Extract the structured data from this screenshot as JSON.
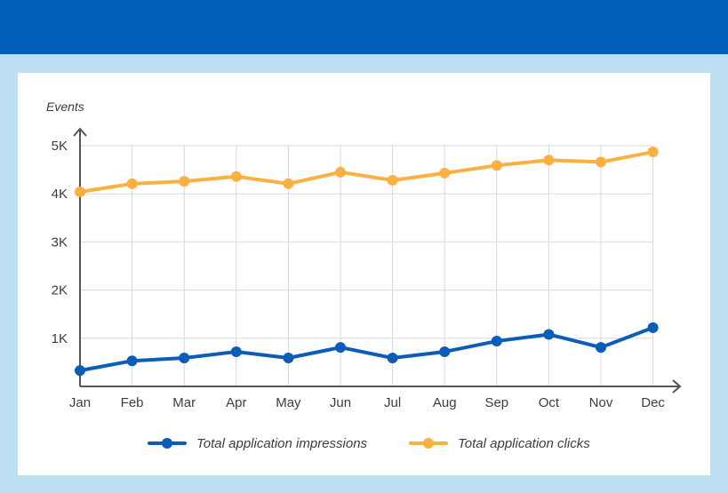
{
  "colors": {
    "banner": "#005eb8",
    "background": "#bde0f3",
    "card": "#ffffff",
    "impressions": "#0b5db8",
    "clicks": "#fbb040",
    "grid": "#d9d9d9",
    "axis": "#555555"
  },
  "chart_data": {
    "type": "line",
    "ylabel": "Events",
    "categories": [
      "Jan",
      "Feb",
      "Mar",
      "Apr",
      "May",
      "Jun",
      "Jul",
      "Aug",
      "Sep",
      "Oct",
      "Nov",
      "Dec"
    ],
    "yticks": [
      1000,
      2000,
      3000,
      4000,
      5000
    ],
    "ytick_labels": [
      "1K",
      "2K",
      "3K",
      "4K",
      "5K"
    ],
    "ylim": [
      0,
      5000
    ],
    "grid": true,
    "legend_position": "bottom",
    "series": [
      {
        "name": "Total application impressions",
        "color": "#0b5db8",
        "values": [
          330,
          530,
          590,
          720,
          590,
          810,
          590,
          720,
          940,
          1080,
          810,
          1220
        ]
      },
      {
        "name": "Total application clicks",
        "color": "#fbb040",
        "values": [
          4040,
          4210,
          4260,
          4360,
          4210,
          4450,
          4280,
          4430,
          4590,
          4700,
          4660,
          4870
        ]
      }
    ]
  }
}
